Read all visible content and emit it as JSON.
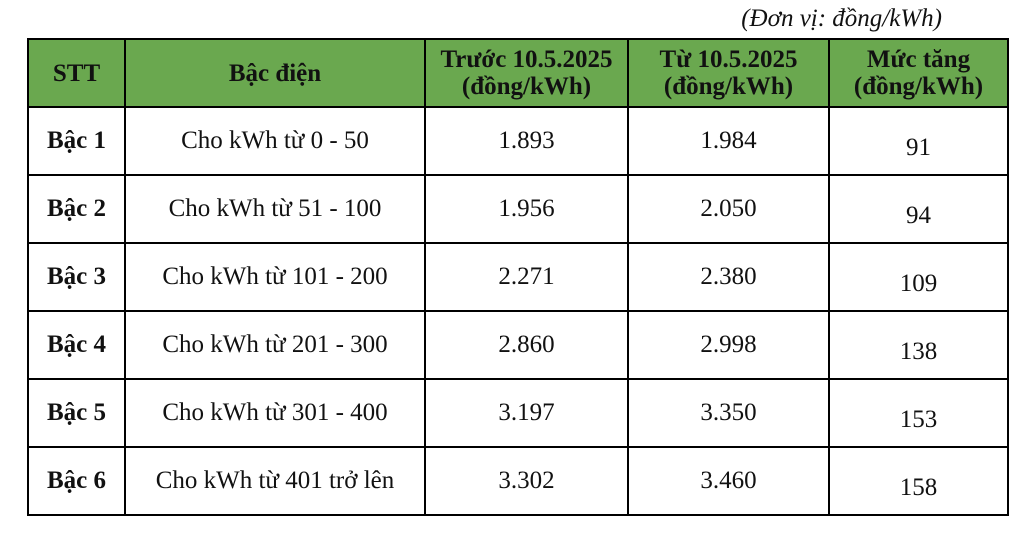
{
  "unit_note": "(Đơn vị: đồng/kWh)",
  "table": {
    "header": [
      [
        "STT"
      ],
      [
        "Bậc điện"
      ],
      [
        "Trước 10.5.2025",
        "(đồng/kWh)"
      ],
      [
        "Từ 10.5.2025",
        "(đồng/kWh)"
      ],
      [
        "Mức tăng",
        "(đồng/kWh)"
      ]
    ],
    "rows": [
      [
        "Bậc 1",
        "Cho kWh từ 0 - 50",
        "1.893",
        "1.984",
        "91"
      ],
      [
        "Bậc 2",
        "Cho kWh từ 51 - 100",
        "1.956",
        "2.050",
        "94"
      ],
      [
        "Bậc 3",
        "Cho kWh từ 101 - 200",
        "2.271",
        "2.380",
        "109"
      ],
      [
        "Bậc 4",
        "Cho kWh từ 201 - 300",
        "2.860",
        "2.998",
        "138"
      ],
      [
        "Bậc 5",
        "Cho kWh từ 301 - 400",
        "3.197",
        "3.350",
        "153"
      ],
      [
        "Bậc 6",
        "Cho kWh từ 401 trở lên",
        "3.302",
        "3.460",
        "158"
      ]
    ]
  }
}
